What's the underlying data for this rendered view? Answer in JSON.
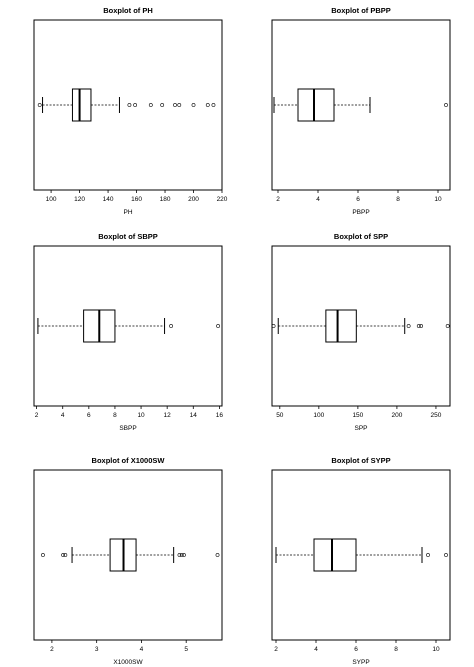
{
  "chart_data": [
    {
      "type": "boxplot",
      "title": "Boxplot of PH",
      "xlabel": "PH",
      "orientation": "horizontal",
      "xlim": [
        88,
        220
      ],
      "ticks": [
        100,
        120,
        140,
        160,
        180,
        200,
        220
      ],
      "whisker_low": 94,
      "q1": 115,
      "median": 120,
      "q3": 128,
      "whisker_high": 148,
      "outliers": [
        92,
        155,
        159,
        170,
        178,
        187,
        190,
        200,
        210,
        214
      ],
      "grid": false
    },
    {
      "type": "boxplot",
      "title": "Boxplot of PBPP",
      "xlabel": "PBPP",
      "orientation": "horizontal",
      "xlim": [
        1.7,
        10.6
      ],
      "ticks": [
        2,
        4,
        6,
        8,
        10
      ],
      "whisker_low": 1.8,
      "q1": 3.0,
      "median": 3.8,
      "q3": 4.8,
      "whisker_high": 6.6,
      "outliers": [
        10.4
      ],
      "grid": false
    },
    {
      "type": "boxplot",
      "title": "Boxplot of SBPP",
      "xlabel": "SBPP",
      "orientation": "horizontal",
      "xlim": [
        1.8,
        16.2
      ],
      "ticks": [
        2,
        4,
        6,
        8,
        10,
        12,
        14,
        16
      ],
      "whisker_low": 2.1,
      "q1": 5.6,
      "median": 6.8,
      "q3": 8.0,
      "whisker_high": 11.8,
      "outliers": [
        12.3,
        15.9
      ],
      "grid": false
    },
    {
      "type": "boxplot",
      "title": "Boxplot of SPP",
      "xlabel": "SPP",
      "orientation": "horizontal",
      "xlim": [
        40,
        268
      ],
      "ticks": [
        50,
        100,
        150,
        200,
        250
      ],
      "whisker_low": 48,
      "q1": 109,
      "median": 124,
      "q3": 148,
      "whisker_high": 210,
      "outliers": [
        42,
        215,
        228,
        231,
        265
      ],
      "grid": false
    },
    {
      "type": "boxplot",
      "title": "Boxplot of X1000SW",
      "xlabel": "X1000SW",
      "orientation": "horizontal",
      "xlim": [
        1.6,
        5.8
      ],
      "ticks": [
        2,
        3,
        4,
        5
      ],
      "whisker_low": 2.45,
      "q1": 3.3,
      "median": 3.6,
      "q3": 3.88,
      "whisker_high": 4.72,
      "outliers": [
        1.8,
        2.25,
        2.3,
        4.85,
        4.9,
        4.95,
        5.7
      ],
      "grid": false
    },
    {
      "type": "boxplot",
      "title": "Boxplot of SYPP",
      "xlabel": "SYPP",
      "orientation": "horizontal",
      "xlim": [
        1.8,
        10.7
      ],
      "ticks": [
        2,
        4,
        6,
        8,
        10
      ],
      "whisker_low": 2.0,
      "q1": 3.9,
      "median": 4.8,
      "q3": 6.0,
      "whisker_high": 9.3,
      "outliers": [
        9.6,
        10.5
      ],
      "grid": false
    }
  ]
}
